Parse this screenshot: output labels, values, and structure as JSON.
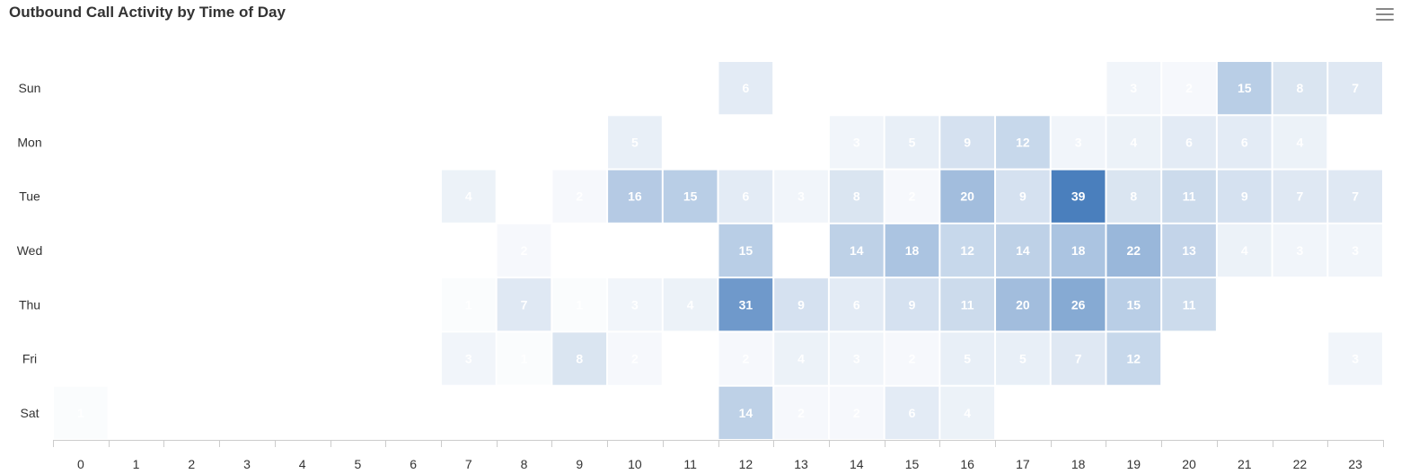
{
  "header": {
    "title": "Outbound Call Activity by Time of Day"
  },
  "menu": {
    "icon": "hamburger-menu-icon"
  },
  "chart_data": {
    "type": "heatmap",
    "title": "Outbound Call Activity by Time of Day",
    "xlabel": "",
    "ylabel": "",
    "x_categories": [
      "0",
      "1",
      "2",
      "3",
      "4",
      "5",
      "6",
      "7",
      "8",
      "9",
      "10",
      "11",
      "12",
      "13",
      "14",
      "15",
      "16",
      "17",
      "18",
      "19",
      "20",
      "21",
      "22",
      "23"
    ],
    "y_categories": [
      "Sun",
      "Mon",
      "Tue",
      "Wed",
      "Thu",
      "Fri",
      "Sat"
    ],
    "color_low": "#ffffff",
    "color_high": "#4a7fbd",
    "value_max": 39,
    "grid": false,
    "legend": "none",
    "cells": [
      [
        "Sun",
        12,
        6
      ],
      [
        "Sun",
        19,
        3
      ],
      [
        "Sun",
        20,
        2
      ],
      [
        "Sun",
        21,
        15
      ],
      [
        "Sun",
        22,
        8
      ],
      [
        "Sun",
        23,
        7
      ],
      [
        "Mon",
        10,
        5
      ],
      [
        "Mon",
        14,
        3
      ],
      [
        "Mon",
        15,
        5
      ],
      [
        "Mon",
        16,
        9
      ],
      [
        "Mon",
        17,
        12
      ],
      [
        "Mon",
        18,
        3
      ],
      [
        "Mon",
        19,
        4
      ],
      [
        "Mon",
        20,
        6
      ],
      [
        "Mon",
        21,
        6
      ],
      [
        "Mon",
        22,
        4
      ],
      [
        "Tue",
        7,
        4
      ],
      [
        "Tue",
        9,
        2
      ],
      [
        "Tue",
        10,
        16
      ],
      [
        "Tue",
        11,
        15
      ],
      [
        "Tue",
        12,
        6
      ],
      [
        "Tue",
        13,
        3
      ],
      [
        "Tue",
        14,
        8
      ],
      [
        "Tue",
        15,
        2
      ],
      [
        "Tue",
        16,
        20
      ],
      [
        "Tue",
        17,
        9
      ],
      [
        "Tue",
        18,
        39
      ],
      [
        "Tue",
        19,
        8
      ],
      [
        "Tue",
        20,
        11
      ],
      [
        "Tue",
        21,
        9
      ],
      [
        "Tue",
        22,
        7
      ],
      [
        "Tue",
        23,
        7
      ],
      [
        "Wed",
        8,
        2
      ],
      [
        "Wed",
        12,
        15
      ],
      [
        "Wed",
        14,
        14
      ],
      [
        "Wed",
        15,
        18
      ],
      [
        "Wed",
        16,
        12
      ],
      [
        "Wed",
        17,
        14
      ],
      [
        "Wed",
        18,
        18
      ],
      [
        "Wed",
        19,
        22
      ],
      [
        "Wed",
        20,
        13
      ],
      [
        "Wed",
        21,
        4
      ],
      [
        "Wed",
        22,
        3
      ],
      [
        "Wed",
        23,
        3
      ],
      [
        "Thu",
        7,
        1
      ],
      [
        "Thu",
        8,
        7
      ],
      [
        "Thu",
        9,
        1
      ],
      [
        "Thu",
        10,
        3
      ],
      [
        "Thu",
        11,
        4
      ],
      [
        "Thu",
        12,
        31
      ],
      [
        "Thu",
        13,
        9
      ],
      [
        "Thu",
        14,
        6
      ],
      [
        "Thu",
        15,
        9
      ],
      [
        "Thu",
        16,
        11
      ],
      [
        "Thu",
        17,
        20
      ],
      [
        "Thu",
        18,
        26
      ],
      [
        "Thu",
        19,
        15
      ],
      [
        "Thu",
        20,
        11
      ],
      [
        "Fri",
        7,
        3
      ],
      [
        "Fri",
        8,
        1
      ],
      [
        "Fri",
        9,
        8
      ],
      [
        "Fri",
        10,
        2
      ],
      [
        "Fri",
        12,
        2
      ],
      [
        "Fri",
        13,
        4
      ],
      [
        "Fri",
        14,
        3
      ],
      [
        "Fri",
        15,
        2
      ],
      [
        "Fri",
        16,
        5
      ],
      [
        "Fri",
        17,
        5
      ],
      [
        "Fri",
        18,
        7
      ],
      [
        "Fri",
        19,
        12
      ],
      [
        "Fri",
        23,
        3
      ],
      [
        "Sat",
        0,
        1
      ],
      [
        "Sat",
        12,
        14
      ],
      [
        "Sat",
        13,
        2
      ],
      [
        "Sat",
        14,
        2
      ],
      [
        "Sat",
        15,
        6
      ],
      [
        "Sat",
        16,
        4
      ]
    ]
  }
}
